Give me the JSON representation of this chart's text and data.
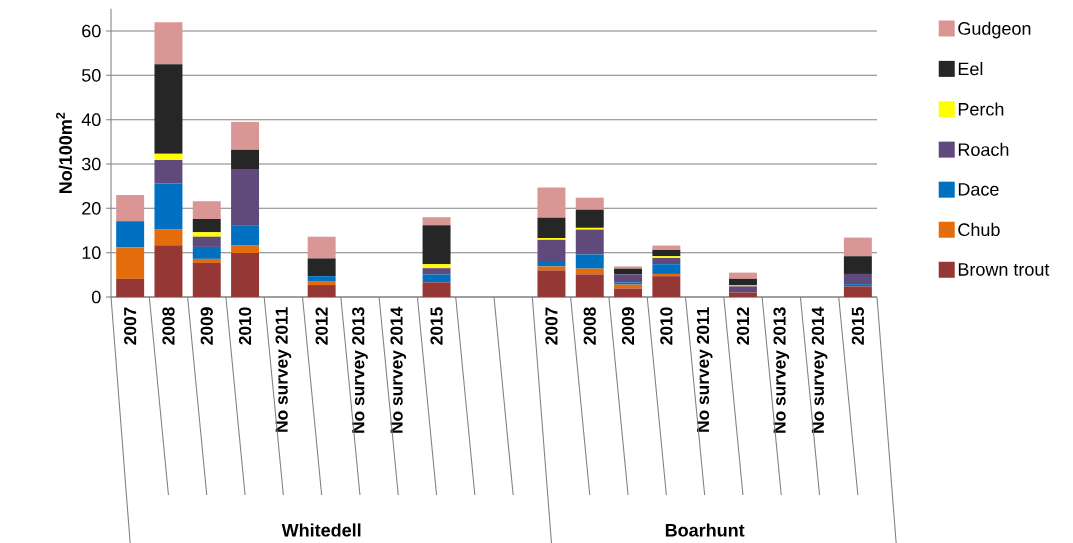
{
  "chart_data": {
    "type": "bar",
    "stacked": true,
    "ylabel": "No/100m$^{2}$",
    "categories": [
      "2007",
      "2008",
      "2009",
      "2010",
      "No survey 2011",
      "2012",
      "No survey 2013",
      "No survey 2014",
      "2015",
      null,
      null,
      "2007",
      "2008",
      "2009",
      "2010",
      "No survey 2011",
      "2012",
      "No survey 2013",
      "No survey 2014",
      "2015"
    ],
    "series": [
      {
        "name": "Brown trout",
        "color": "#953735",
        "values": [
          4.1,
          11.7,
          7.7,
          9.9,
          null,
          2.7,
          null,
          null,
          3.3,
          null,
          null,
          6.0,
          5.1,
          1.9,
          4.7,
          null,
          1.0,
          null,
          null,
          2.4
        ]
      },
      {
        "name": "Chub",
        "color": "#e46c0a",
        "values": [
          7.1,
          3.6,
          0.9,
          1.8,
          null,
          0.9,
          null,
          null,
          0,
          null,
          null,
          0.9,
          1.3,
          0.9,
          0.5,
          null,
          0,
          null,
          null,
          0
        ]
      },
      {
        "name": "Dace",
        "color": "#0070c0",
        "values": [
          5.9,
          10.3,
          2.7,
          4.5,
          null,
          1.1,
          null,
          null,
          1.8,
          null,
          null,
          1.0,
          3.2,
          0.5,
          2.2,
          null,
          0,
          null,
          null,
          0.5
        ]
      },
      {
        "name": "Roach",
        "color": "#604a7b",
        "values": [
          0,
          5.3,
          2.3,
          12.5,
          null,
          0,
          null,
          null,
          1.4,
          null,
          null,
          5.0,
          5.6,
          1.8,
          1.4,
          null,
          1.4,
          null,
          null,
          2.3
        ]
      },
      {
        "name": "Perch",
        "color": "#ffff00",
        "values": [
          0,
          1.4,
          1.0,
          0,
          null,
          0,
          null,
          null,
          0.9,
          null,
          null,
          0.4,
          0.4,
          0,
          0.4,
          null,
          0.2,
          null,
          null,
          0
        ]
      },
      {
        "name": "Eel",
        "color": "#262626",
        "values": [
          0,
          20.2,
          3.0,
          4.5,
          null,
          4.0,
          null,
          null,
          8.8,
          null,
          null,
          4.6,
          4.1,
          1.3,
          1.4,
          null,
          1.5,
          null,
          null,
          4.0
        ]
      },
      {
        "name": "Gudgeon",
        "color": "#d99694",
        "values": [
          5.9,
          9.5,
          4.0,
          6.3,
          null,
          4.9,
          null,
          null,
          1.8,
          null,
          null,
          6.8,
          2.7,
          0.5,
          1.0,
          null,
          1.4,
          null,
          null,
          4.2
        ]
      }
    ],
    "ylim": [
      0,
      65
    ],
    "yticks": [
      0,
      10,
      20,
      30,
      40,
      50,
      60
    ],
    "grid": "y",
    "legend": "right",
    "annotations": [
      "Whitedell",
      "Boarhunt"
    ]
  }
}
